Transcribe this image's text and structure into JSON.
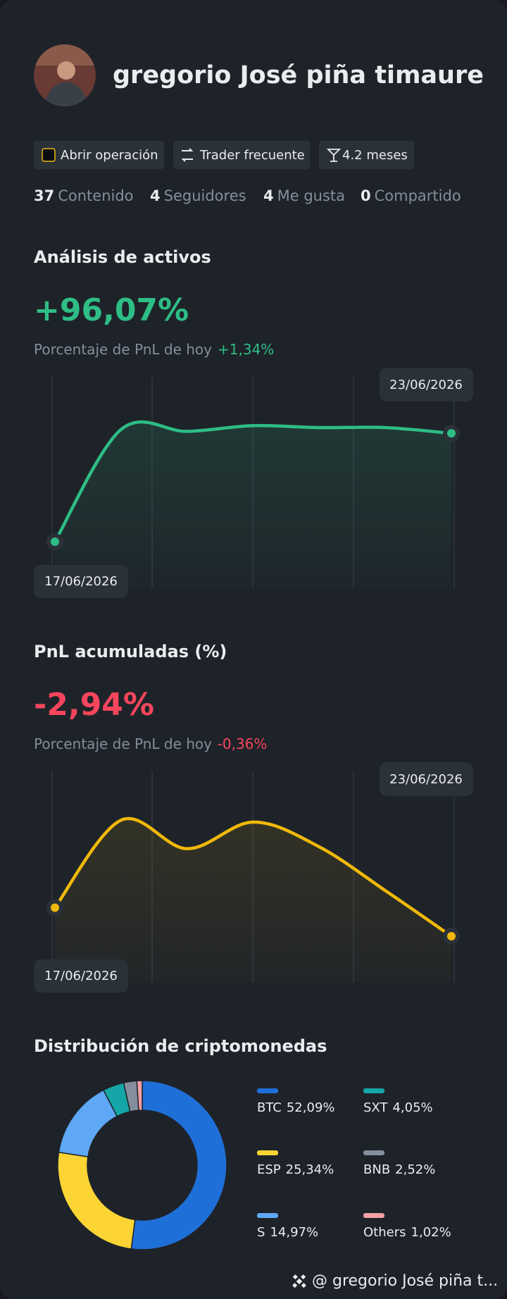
{
  "profile": {
    "name": "gregorio José piña timaure"
  },
  "badges": [
    "Abrir operación",
    "Trader frecuente",
    "4.2 meses"
  ],
  "stats": [
    {
      "value": 37,
      "label": "Contenido"
    },
    {
      "value": 4,
      "label": "Seguidores"
    },
    {
      "value": 4,
      "label": "Me gusta"
    },
    {
      "value": 0,
      "label": "Compartido"
    }
  ],
  "chart_data": [
    {
      "type": "line",
      "title": "Análisis de activos",
      "headline": "+96,07%",
      "subtitle": "Porcentaje de PnL de hoy",
      "change": "+1,34%",
      "x": [
        "17/06/2026",
        null,
        null,
        null,
        null,
        null,
        "23/06/2026"
      ],
      "series": [
        {
          "color": "#2ebd85",
          "values": [
            20,
            79,
            78,
            81,
            80,
            80,
            77
          ]
        }
      ],
      "ylim": [
        0,
        100
      ]
    },
    {
      "type": "line",
      "title": "PnL acumuladas (%)",
      "headline": "-2,94%",
      "subtitle": "Porcentaje de PnL de hoy",
      "change": "-0,36%",
      "x": [
        "17/06/2026",
        null,
        null,
        null,
        null,
        null,
        "23/06/2026"
      ],
      "series": [
        {
          "color": "#f0b90b",
          "values": [
            35,
            81,
            66,
            80,
            67,
            44,
            20
          ]
        }
      ],
      "ylim": [
        0,
        100
      ]
    },
    {
      "type": "pie",
      "title": "Distribución de criptomonedas",
      "donut": true,
      "categories": [
        "BTC",
        "ESP",
        "S",
        "SXT",
        "BNB",
        "Others"
      ],
      "values": [
        52.09,
        25.34,
        14.97,
        4.05,
        2.52,
        1.02
      ],
      "value_labels": [
        "52,09%",
        "25,34%",
        "14,97%",
        "4,05%",
        "2,52%",
        "1,02%"
      ],
      "colors": [
        "#1f6fd8",
        "#fcd535",
        "#5ea8f5",
        "#14a6a6",
        "#858e9c",
        "#f5a0a8"
      ]
    }
  ],
  "footer": "@ gregorio José piña t..."
}
